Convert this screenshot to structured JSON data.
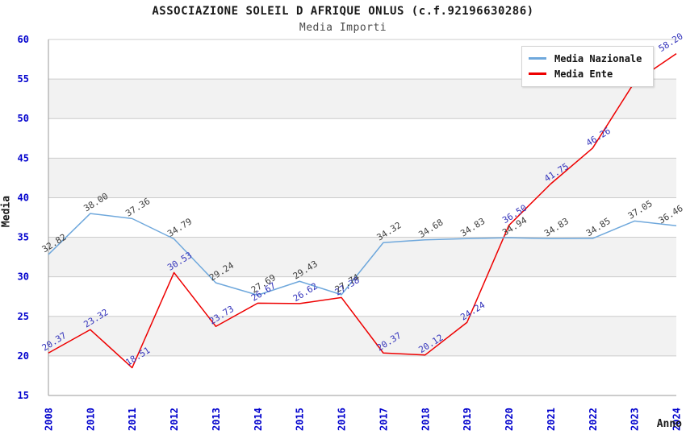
{
  "header": {
    "title": "ASSOCIAZIONE SOLEIL D AFRIQUE ONLUS (c.f.92196630286)",
    "subtitle": "Media Importi"
  },
  "axes": {
    "y_axis_label": "Media",
    "x_axis_label": "Anno"
  },
  "legend": {
    "items": [
      {
        "label": "Media Nazionale",
        "color": "#6FA8DC"
      },
      {
        "label": "Media Ente",
        "color": "#EE0000"
      }
    ]
  },
  "chart_data": {
    "type": "line",
    "title": "ASSOCIAZIONE SOLEIL D AFRIQUE ONLUS (c.f.92196630286)",
    "subtitle": "Media Importi",
    "xlabel": "Anno",
    "ylabel": "Media",
    "x": [
      "2008",
      "2010",
      "2011",
      "2012",
      "2013",
      "2014",
      "2015",
      "2016",
      "2017",
      "2018",
      "2019",
      "2020",
      "2021",
      "2022",
      "2023",
      "2024"
    ],
    "ylim": [
      15,
      60
    ],
    "ytick_step": 5,
    "ytick_labels": [
      "15",
      "20",
      "25",
      "30",
      "35",
      "40",
      "45",
      "50",
      "55",
      "60"
    ],
    "grid": "horizontal-on",
    "legend_position": "top-right",
    "plot_bands": "alternating gray every 5 units (20-25, 30-35, 40-45, 50-55)",
    "series": [
      {
        "name": "Media Ente",
        "color": "#EE0000",
        "label_color": "#3333BB",
        "values": [
          20.37,
          23.32,
          18.51,
          30.53,
          23.73,
          26.67,
          26.62,
          27.38,
          20.37,
          20.12,
          24.24,
          36.5,
          41.75,
          46.26,
          54.6,
          58.2
        ],
        "labels": [
          "20.37",
          "23.32",
          "18.51",
          "30.53",
          "23.73",
          "26.67",
          "26.62",
          "27.38",
          "20.37",
          "20.12",
          "24.24",
          "36.50",
          "41.75",
          "46.26",
          "",
          "58.20"
        ]
      },
      {
        "name": "Media Nazionale",
        "color": "#6FA8DC",
        "label_color": "#3E3E3E",
        "values": [
          32.82,
          38.0,
          37.36,
          34.79,
          29.24,
          27.69,
          29.43,
          27.74,
          34.32,
          34.68,
          34.83,
          34.94,
          34.83,
          34.85,
          37.05,
          36.46
        ],
        "labels": [
          "32.82",
          "38.00",
          "37.36",
          "34.79",
          "29.24",
          "27.69",
          "29.43",
          "27.74",
          "34.32",
          "34.68",
          "34.83",
          "34.94",
          "34.83",
          "34.85",
          "37.05",
          "36.46"
        ]
      }
    ],
    "style": {
      "tick_label_color": "#0000CD",
      "band_fill": "#F2F2F2",
      "grid_color": "#CCCCCC",
      "axis_color": "#999999",
      "background": "#FFFFFF"
    }
  }
}
